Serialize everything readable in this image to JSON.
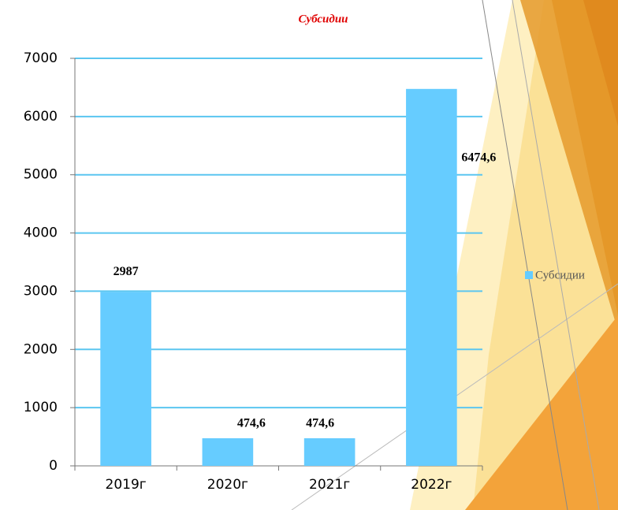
{
  "chart_data": {
    "type": "bar",
    "title": "Субсидии",
    "categories": [
      "2019г",
      "2020г",
      "2021г",
      "2022г"
    ],
    "series": [
      {
        "name": "Субсидии",
        "color": "#66ccff",
        "values": [
          2987,
          474.6,
          474.6,
          6474.6
        ],
        "value_labels": [
          "2987",
          "474,6",
          "474,6",
          "6474,6"
        ]
      }
    ],
    "ylim": [
      0,
      7000
    ],
    "yticks": [
      0,
      1000,
      2000,
      3000,
      4000,
      5000,
      6000,
      7000
    ],
    "grid": true,
    "legend": "right"
  }
}
